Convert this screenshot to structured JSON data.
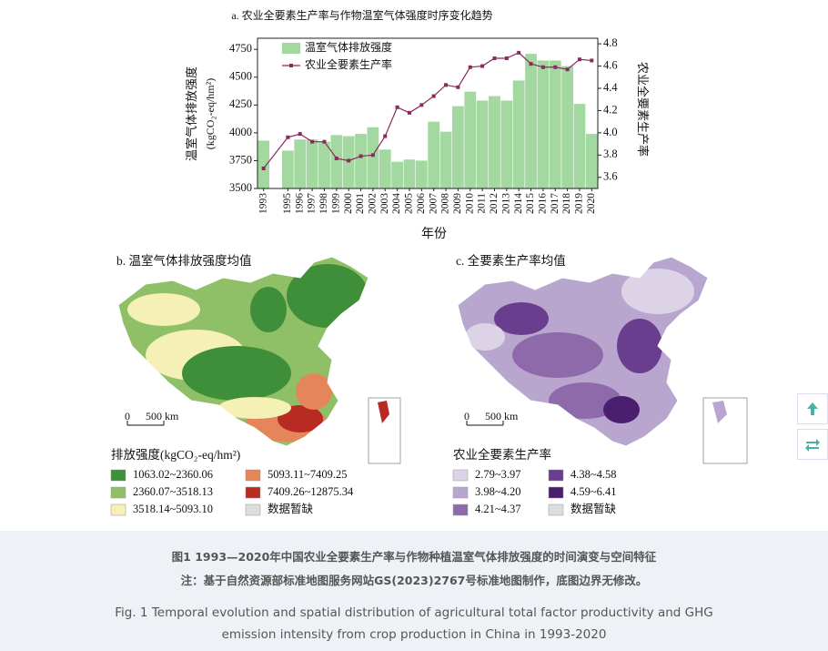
{
  "chart_data": {
    "type": "bar",
    "title": "a. 农业全要素生产率与作物温室气体强度时序变化趋势",
    "x_label": "年份",
    "y_label": "温室气体排放强度",
    "y_label_unit": "(kgCO₂-eq/hm²)",
    "y2_label": "农业全要素生产率",
    "x": [
      1993,
      1995,
      1996,
      1997,
      1998,
      1999,
      2000,
      2001,
      2002,
      2003,
      2004,
      2005,
      2006,
      2007,
      2008,
      2009,
      2010,
      2011,
      2012,
      2013,
      2014,
      2015,
      2016,
      2017,
      2018,
      2019,
      2020
    ],
    "xlim": [
      1992.5,
      2020.5
    ],
    "ylim": [
      3500,
      4850
    ],
    "yticks": [
      3500,
      3750,
      4000,
      4250,
      4500,
      4750
    ],
    "y2lim": [
      3.5,
      4.85
    ],
    "y2ticks": [
      3.6,
      3.8,
      {
        "value": 4,
        "label": "4.0"
      },
      4.2,
      4.4,
      4.6,
      4.8
    ],
    "legend": "upper left",
    "series": [
      {
        "name": "温室气体排放强度",
        "type": "bar",
        "color": "#a3d8a0",
        "values": [
          3930,
          3840,
          3940,
          3940,
          3920,
          3980,
          3970,
          3990,
          4050,
          3850,
          3740,
          3760,
          3750,
          4100,
          4010,
          4240,
          4370,
          4290,
          4330,
          4290,
          4470,
          4710,
          4650,
          4650,
          4600,
          4260,
          3990
        ]
      },
      {
        "name": "农业全要素生产率",
        "type": "line",
        "axis": "y2",
        "color": "#8b2a5c",
        "values": [
          3.68,
          3.96,
          3.99,
          3.92,
          3.92,
          3.77,
          3.75,
          3.79,
          3.8,
          3.97,
          4.23,
          4.18,
          4.25,
          4.33,
          4.43,
          4.41,
          4.59,
          4.6,
          4.67,
          4.67,
          4.72,
          4.62,
          4.59,
          4.59,
          4.57,
          4.66,
          4.65
        ]
      }
    ]
  },
  "maps": [
    {
      "title": "b. 温室气体排放强度均值",
      "scale": [
        "0",
        "500 km"
      ],
      "legend_title": "排放强度(kgCO₂-eq/hm²)",
      "legend": [
        {
          "label": "1063.02~2360.06",
          "color": "#3e8e3a"
        },
        {
          "label": "2360.07~3518.13",
          "color": "#8fbf67"
        },
        {
          "label": "3518.14~5093.10",
          "color": "#f5f0b5"
        },
        {
          "label": "5093.11~7409.25",
          "color": "#e5855a"
        },
        {
          "label": "7409.26~12875.34",
          "color": "#b82a22"
        },
        {
          "label": "数据暂缺",
          "color": "#dddddd"
        }
      ]
    },
    {
      "title": "c. 全要素生产率均值",
      "scale": [
        "0",
        "500 km"
      ],
      "legend_title": "农业全要素生产率",
      "legend": [
        {
          "label": "2.79~3.97",
          "color": "#dcd3e6"
        },
        {
          "label": "3.98~4.20",
          "color": "#b9a6cf"
        },
        {
          "label": "4.21~4.37",
          "color": "#8e6aaa"
        },
        {
          "label": "4.38~4.58",
          "color": "#6a3e8f"
        },
        {
          "label": "4.59~6.41",
          "color": "#4a1f6d"
        },
        {
          "label": "数据暂缺",
          "color": "#dddddd"
        }
      ]
    }
  ],
  "caption": {
    "title_zh": "图1 1993—2020年中国农业全要素生产率与作物种植温室气体排放强度的时间演变与空间特征",
    "note_zh": "注：基于自然资源部标准地图服务网站GS(2023)2767号标准地图制作，底图边界无修改。",
    "title_en": "Fig. 1 Temporal evolution and spatial distribution of agricultural total factor productivity and GHG emission intensity from crop production in China in 1993-2020"
  }
}
